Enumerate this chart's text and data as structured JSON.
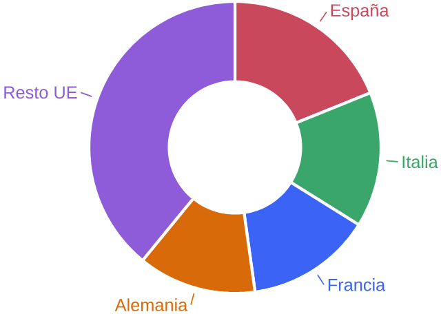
{
  "chart_data": {
    "type": "donut",
    "categories": [
      "España",
      "Italia",
      "Francia",
      "Alemania",
      "Resto UE"
    ],
    "values": [
      18.9,
      15.0,
      13.9,
      13.1,
      39.1
    ],
    "colors": [
      "#c9485b",
      "#3aa66c",
      "#3b63f5",
      "#d96a0a",
      "#8e5bd9"
    ]
  }
}
